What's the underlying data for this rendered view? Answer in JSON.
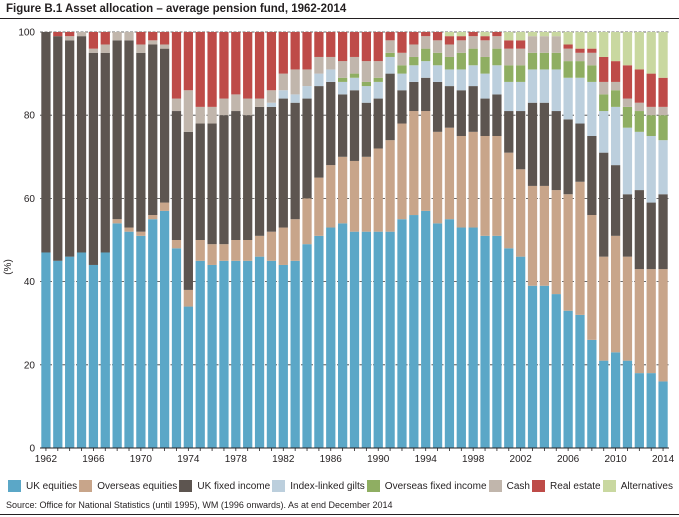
{
  "figure": {
    "title": "Figure B.1 Asset allocation – average pension fund, 1962-2014",
    "source": "Source: Office for National Statistics (until 1995), WM (1996 onwards). As at end December 2014"
  },
  "colors": {
    "UK equities": "#5ba7c7",
    "Overseas equities": "#c8a58a",
    "UK fixed income": "#5d5550",
    "Index-linked gilts": "#bccfdd",
    "Overseas fixed income": "#8fae62",
    "Cash": "#c1b6ac",
    "Real estate": "#be4b48",
    "Alternatives": "#c9d8a0"
  },
  "chart_data": {
    "type": "bar",
    "stacked": true,
    "ylabel": "(%)",
    "ylim": [
      0,
      100
    ],
    "yticks": [
      0,
      20,
      40,
      60,
      80,
      100
    ],
    "xlim": [
      1962,
      2014
    ],
    "xticks": [
      1962,
      1966,
      1970,
      1974,
      1978,
      1982,
      1986,
      1990,
      1994,
      1998,
      2002,
      2006,
      2010,
      2014
    ],
    "grid": "horizontal",
    "legend": "bottom",
    "years": [
      1962,
      1963,
      1964,
      1965,
      1966,
      1967,
      1968,
      1969,
      1970,
      1971,
      1972,
      1973,
      1974,
      1975,
      1976,
      1977,
      1978,
      1979,
      1980,
      1981,
      1982,
      1983,
      1984,
      1985,
      1986,
      1987,
      1988,
      1989,
      1990,
      1991,
      1992,
      1993,
      1994,
      1995,
      1996,
      1997,
      1998,
      1999,
      2000,
      2001,
      2002,
      2003,
      2004,
      2005,
      2006,
      2007,
      2008,
      2009,
      2010,
      2011,
      2012,
      2013,
      2014
    ],
    "series": [
      {
        "name": "UK equities",
        "values": [
          47,
          45,
          46,
          47,
          44,
          47,
          54,
          52,
          51,
          55,
          57,
          48,
          34,
          45,
          44,
          45,
          45,
          45,
          46,
          45,
          44,
          45,
          49,
          51,
          53,
          54,
          52,
          52,
          52,
          52,
          55,
          56,
          57,
          54,
          55,
          53,
          53,
          51,
          51,
          48,
          46,
          39,
          39,
          37,
          33,
          32,
          26,
          21,
          23,
          21,
          18,
          18,
          16
        ]
      },
      {
        "name": "Overseas equities",
        "values": [
          0,
          0,
          0,
          0,
          0,
          0,
          1,
          1,
          1,
          1,
          2,
          2,
          4,
          5,
          5,
          4,
          5,
          5,
          5,
          7,
          9,
          10,
          11,
          14,
          15,
          16,
          17,
          18,
          20,
          22,
          23,
          25,
          24,
          22,
          22,
          22,
          23,
          24,
          24,
          23,
          21,
          24,
          24,
          25,
          28,
          32,
          30,
          25,
          28,
          25,
          25,
          25,
          27
        ]
      },
      {
        "name": "UK fixed income",
        "values": [
          53,
          54,
          52,
          52,
          51,
          48,
          43,
          45,
          43,
          41,
          37,
          31,
          38,
          28,
          29,
          31,
          31,
          30,
          31,
          30,
          31,
          28,
          24,
          22,
          20,
          15,
          17,
          13,
          12,
          16,
          8,
          7,
          8,
          12,
          10,
          11,
          11,
          9,
          10,
          10,
          14,
          20,
          20,
          19,
          18,
          14,
          19,
          25,
          17,
          15,
          19,
          16,
          18
        ]
      },
      {
        "name": "Index-linked gilts",
        "values": [
          0,
          0,
          0,
          0,
          0,
          0,
          0,
          0,
          0,
          0,
          0,
          0,
          0,
          0,
          0,
          0,
          0,
          0,
          0,
          1,
          2,
          2,
          3,
          3,
          3,
          3,
          3,
          4,
          4,
          4,
          4,
          4,
          4,
          4,
          4,
          5,
          5,
          6,
          7,
          7,
          7,
          8,
          8,
          10,
          10,
          11,
          13,
          10,
          14,
          16,
          14,
          16,
          13
        ]
      },
      {
        "name": "Overseas fixed income",
        "values": [
          0,
          0,
          0,
          0,
          0,
          0,
          0,
          0,
          0,
          0,
          0,
          0,
          0,
          0,
          0,
          0,
          0,
          0,
          0,
          0,
          0,
          0,
          0,
          0,
          0,
          1,
          1,
          1,
          1,
          1,
          2,
          2,
          3,
          3,
          3,
          4,
          4,
          4,
          4,
          4,
          4,
          4,
          4,
          4,
          4,
          4,
          4,
          4,
          4,
          5,
          5,
          5,
          6
        ]
      },
      {
        "name": "Cash",
        "values": [
          0,
          0,
          1,
          1,
          1,
          2,
          2,
          2,
          2,
          1,
          1,
          3,
          10,
          4,
          4,
          4,
          4,
          4,
          2,
          3,
          4,
          6,
          4,
          4,
          3,
          4,
          4,
          5,
          4,
          3,
          3,
          3,
          3,
          3,
          3,
          3,
          3,
          4,
          3,
          4,
          4,
          4,
          4,
          4,
          3,
          2,
          3,
          3,
          2,
          2,
          2,
          2,
          2
        ]
      },
      {
        "name": "Real estate",
        "values": [
          0,
          1,
          1,
          0,
          4,
          3,
          0,
          0,
          3,
          2,
          3,
          16,
          14,
          18,
          18,
          16,
          15,
          16,
          16,
          14,
          10,
          9,
          9,
          6,
          6,
          7,
          6,
          7,
          7,
          2,
          5,
          3,
          1,
          2,
          2,
          1,
          1,
          1,
          1,
          2,
          2,
          0,
          0,
          0,
          1,
          1,
          1,
          6,
          5,
          8,
          8,
          8,
          7
        ]
      },
      {
        "name": "Alternatives",
        "values": [
          0,
          0,
          0,
          0,
          0,
          0,
          0,
          0,
          0,
          0,
          0,
          0,
          0,
          0,
          0,
          0,
          0,
          0,
          0,
          0,
          0,
          0,
          0,
          0,
          0,
          0,
          0,
          0,
          0,
          0,
          0,
          0,
          0,
          0,
          1,
          1,
          0,
          1,
          0,
          2,
          2,
          1,
          1,
          1,
          3,
          4,
          4,
          6,
          7,
          8,
          9,
          10,
          11
        ]
      }
    ]
  }
}
